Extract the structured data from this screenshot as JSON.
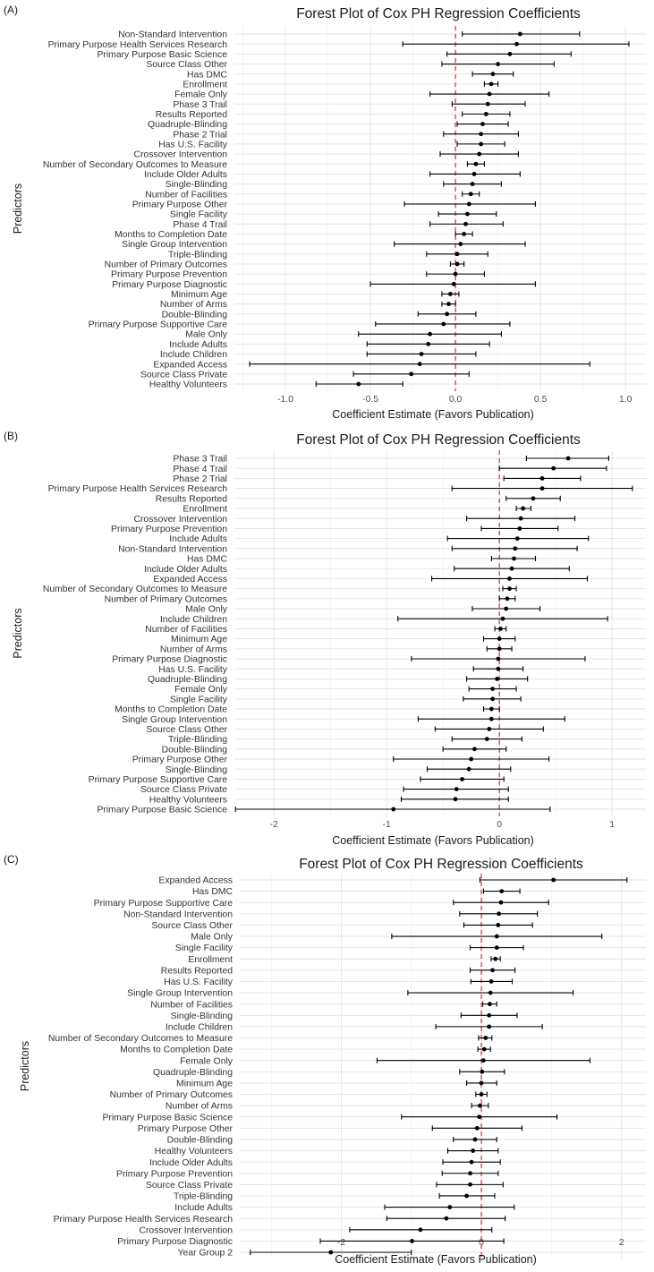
{
  "chart_data": [
    {
      "type": "forest",
      "panel_label": "(A)",
      "title": "Forest Plot of Cox PH Regression Coefficients",
      "xlabel": "Coefficient Estimate (Favors Publication)",
      "ylabel": "Predictors",
      "xlim": [
        -1.3,
        1.12
      ],
      "xticks": [
        -1.0,
        -0.5,
        0.0,
        0.5,
        1.0
      ],
      "xtick_labels": [
        "-1.0",
        "-0.5",
        "0.0",
        "0.5",
        "1.0"
      ],
      "reference_line": 0,
      "reference_color": "#e8242a",
      "rows": [
        {
          "label": "Non-Standard Intervention",
          "est": 0.38,
          "lo": 0.04,
          "hi": 0.73
        },
        {
          "label": "Primary Purpose Health Services Research",
          "est": 0.36,
          "lo": -0.31,
          "hi": 1.02
        },
        {
          "label": "Primary Purpose Basic Science",
          "est": 0.32,
          "lo": -0.05,
          "hi": 0.68
        },
        {
          "label": "Source Class Other",
          "est": 0.25,
          "lo": -0.08,
          "hi": 0.58
        },
        {
          "label": "Has DMC",
          "est": 0.22,
          "lo": 0.1,
          "hi": 0.34
        },
        {
          "label": "Enrollment",
          "est": 0.21,
          "lo": 0.17,
          "hi": 0.25
        },
        {
          "label": "Female Only",
          "est": 0.2,
          "lo": -0.15,
          "hi": 0.55
        },
        {
          "label": "Phase 3 Trail",
          "est": 0.19,
          "lo": -0.02,
          "hi": 0.41
        },
        {
          "label": "Results Reported",
          "est": 0.18,
          "lo": 0.04,
          "hi": 0.32
        },
        {
          "label": "Quadruple-Blinding",
          "est": 0.16,
          "lo": 0.01,
          "hi": 0.31
        },
        {
          "label": "Phase 2 Trial",
          "est": 0.15,
          "lo": -0.07,
          "hi": 0.37
        },
        {
          "label": "Has U.S. Facility",
          "est": 0.15,
          "lo": 0.01,
          "hi": 0.29
        },
        {
          "label": "Crossover Intervention",
          "est": 0.14,
          "lo": -0.09,
          "hi": 0.37
        },
        {
          "label": "Number of Secondary Outcomes to Measure",
          "est": 0.12,
          "lo": 0.07,
          "hi": 0.17
        },
        {
          "label": "Include Older Adults",
          "est": 0.11,
          "lo": -0.15,
          "hi": 0.38
        },
        {
          "label": "Single-Blinding",
          "est": 0.1,
          "lo": -0.07,
          "hi": 0.27
        },
        {
          "label": "Number of Facilities",
          "est": 0.09,
          "lo": 0.04,
          "hi": 0.14
        },
        {
          "label": "Primary Purpose Other",
          "est": 0.08,
          "lo": -0.3,
          "hi": 0.47
        },
        {
          "label": "Single Facility",
          "est": 0.07,
          "lo": -0.1,
          "hi": 0.24
        },
        {
          "label": "Phase 4 Trail",
          "est": 0.06,
          "lo": -0.15,
          "hi": 0.28
        },
        {
          "label": "Months to Completion Date",
          "est": 0.05,
          "lo": 0.0,
          "hi": 0.1
        },
        {
          "label": "Single Group Intervention",
          "est": 0.03,
          "lo": -0.36,
          "hi": 0.41
        },
        {
          "label": "Triple-Blinding",
          "est": 0.01,
          "lo": -0.17,
          "hi": 0.19
        },
        {
          "label": "Number of Primary Outcomes",
          "est": 0.01,
          "lo": -0.03,
          "hi": 0.05
        },
        {
          "label": "Primary Purpose Prevention",
          "est": 0.0,
          "lo": -0.17,
          "hi": 0.17
        },
        {
          "label": "Primary Purpose Diagnostic",
          "est": -0.01,
          "lo": -0.5,
          "hi": 0.47
        },
        {
          "label": "Minimum Age",
          "est": -0.03,
          "lo": -0.08,
          "hi": 0.02
        },
        {
          "label": "Number of Arms",
          "est": -0.04,
          "lo": -0.08,
          "hi": 0.0
        },
        {
          "label": "Double-Blinding",
          "est": -0.05,
          "lo": -0.22,
          "hi": 0.12
        },
        {
          "label": "Primary Purpose Supportive Care",
          "est": -0.07,
          "lo": -0.47,
          "hi": 0.32
        },
        {
          "label": "Male Only",
          "est": -0.15,
          "lo": -0.57,
          "hi": 0.27
        },
        {
          "label": "Include Adults",
          "est": -0.16,
          "lo": -0.52,
          "hi": 0.2
        },
        {
          "label": "Include Children",
          "est": -0.2,
          "lo": -0.52,
          "hi": 0.12
        },
        {
          "label": "Expanded Access",
          "est": -0.21,
          "lo": -1.21,
          "hi": 0.79
        },
        {
          "label": "Source Class Private",
          "est": -0.26,
          "lo": -0.6,
          "hi": 0.08
        },
        {
          "label": "Healthy Volunteers",
          "est": -0.57,
          "lo": -0.82,
          "hi": -0.31
        }
      ]
    },
    {
      "type": "forest",
      "panel_label": "(B)",
      "title": "Forest Plot of Cox PH Regression Coefficients",
      "xlabel": "Coefficient Estimate (Favors Publication)",
      "ylabel": "Predictors",
      "xlim": [
        -2.35,
        1.3
      ],
      "xticks": [
        -2,
        -1,
        0,
        1
      ],
      "xtick_labels": [
        "-2",
        "-1",
        "0",
        "1"
      ],
      "reference_line": 0,
      "reference_color": "#e8242a",
      "rows": [
        {
          "label": "Phase 3 Trail",
          "est": 0.61,
          "lo": 0.24,
          "hi": 0.97
        },
        {
          "label": "Phase 4 Trail",
          "est": 0.48,
          "lo": 0.0,
          "hi": 0.95
        },
        {
          "label": "Phase 2 Trial",
          "est": 0.38,
          "lo": 0.04,
          "hi": 0.72
        },
        {
          "label": "Primary Purpose Health Services Research",
          "est": 0.38,
          "lo": -0.42,
          "hi": 1.18
        },
        {
          "label": "Results Reported",
          "est": 0.3,
          "lo": 0.06,
          "hi": 0.54
        },
        {
          "label": "Enrollment",
          "est": 0.21,
          "lo": 0.15,
          "hi": 0.28
        },
        {
          "label": "Crossover Intervention",
          "est": 0.19,
          "lo": -0.29,
          "hi": 0.67
        },
        {
          "label": "Primary Purpose Prevention",
          "est": 0.18,
          "lo": -0.16,
          "hi": 0.52
        },
        {
          "label": "Include Adults",
          "est": 0.16,
          "lo": -0.46,
          "hi": 0.79
        },
        {
          "label": "Non-Standard Intervention",
          "est": 0.14,
          "lo": -0.42,
          "hi": 0.69
        },
        {
          "label": "Has DMC",
          "est": 0.13,
          "lo": -0.07,
          "hi": 0.32
        },
        {
          "label": "Include Older Adults",
          "est": 0.11,
          "lo": -0.4,
          "hi": 0.62
        },
        {
          "label": "Expanded Access",
          "est": 0.09,
          "lo": -0.6,
          "hi": 0.78
        },
        {
          "label": "Number of Secondary Outcomes to Measure",
          "est": 0.09,
          "lo": 0.03,
          "hi": 0.15
        },
        {
          "label": "Number of Primary Outcomes",
          "est": 0.07,
          "lo": 0.0,
          "hi": 0.14
        },
        {
          "label": "Male Only",
          "est": 0.06,
          "lo": -0.24,
          "hi": 0.36
        },
        {
          "label": "Include Children",
          "est": 0.03,
          "lo": -0.9,
          "hi": 0.96
        },
        {
          "label": "Number of Facilities",
          "est": 0.01,
          "lo": -0.04,
          "hi": 0.06
        },
        {
          "label": "Minimum Age",
          "est": 0.0,
          "lo": -0.14,
          "hi": 0.14
        },
        {
          "label": "Number of Arms",
          "est": 0.0,
          "lo": -0.11,
          "hi": 0.11
        },
        {
          "label": "Primary Purpose Diagnostic",
          "est": -0.01,
          "lo": -0.78,
          "hi": 0.76
        },
        {
          "label": "Has U.S. Facility",
          "est": -0.01,
          "lo": -0.23,
          "hi": 0.21
        },
        {
          "label": "Quadruple-Blinding",
          "est": -0.02,
          "lo": -0.29,
          "hi": 0.25
        },
        {
          "label": "Female Only",
          "est": -0.06,
          "lo": -0.27,
          "hi": 0.15
        },
        {
          "label": "Single Facility",
          "est": -0.06,
          "lo": -0.32,
          "hi": 0.19
        },
        {
          "label": "Months to Completion Date",
          "est": -0.07,
          "lo": -0.14,
          "hi": 0.0
        },
        {
          "label": "Single Group Intervention",
          "est": -0.07,
          "lo": -0.72,
          "hi": 0.58
        },
        {
          "label": "Source Class Other",
          "est": -0.09,
          "lo": -0.57,
          "hi": 0.39
        },
        {
          "label": "Triple-Blinding",
          "est": -0.11,
          "lo": -0.42,
          "hi": 0.2
        },
        {
          "label": "Double-Blinding",
          "est": -0.22,
          "lo": -0.5,
          "hi": 0.06
        },
        {
          "label": "Primary Purpose Other",
          "est": -0.25,
          "lo": -0.94,
          "hi": 0.44
        },
        {
          "label": "Single-Blinding",
          "est": -0.27,
          "lo": -0.64,
          "hi": 0.1
        },
        {
          "label": "Primary Purpose Supportive Care",
          "est": -0.33,
          "lo": -0.7,
          "hi": 0.04
        },
        {
          "label": "Source Class Private",
          "est": -0.38,
          "lo": -0.85,
          "hi": 0.08
        },
        {
          "label": "Healthy Volunteers",
          "est": -0.39,
          "lo": -0.87,
          "hi": 0.08
        },
        {
          "label": "Primary Purpose Basic Science",
          "est": -0.94,
          "lo": -2.34,
          "hi": 0.45
        }
      ]
    },
    {
      "type": "forest",
      "panel_label": "(C)",
      "title": "Forest Plot of Cox PH Regression Coefficients",
      "xlabel": "Coefficient Estimate (Favors Publication)",
      "ylabel": "Predictors",
      "xlim": [
        -3.45,
        2.35
      ],
      "xticks": [
        -2,
        0,
        2
      ],
      "xtick_labels": [
        "-2",
        "0",
        "2"
      ],
      "reference_line": 0,
      "reference_color": "#e8242a",
      "rows": [
        {
          "label": "Expanded Access",
          "est": 1.03,
          "lo": -0.02,
          "hi": 2.08
        },
        {
          "label": "Has DMC",
          "est": 0.29,
          "lo": 0.03,
          "hi": 0.55
        },
        {
          "label": "Primary Purpose Supportive Care",
          "est": 0.28,
          "lo": -0.4,
          "hi": 0.96
        },
        {
          "label": "Non-Standard Intervention",
          "est": 0.25,
          "lo": -0.31,
          "hi": 0.8
        },
        {
          "label": "Source Class Other",
          "est": 0.24,
          "lo": -0.25,
          "hi": 0.73
        },
        {
          "label": "Male Only",
          "est": 0.22,
          "lo": -1.28,
          "hi": 1.72
        },
        {
          "label": "Single Facility",
          "est": 0.22,
          "lo": -0.16,
          "hi": 0.6
        },
        {
          "label": "Enrollment",
          "est": 0.2,
          "lo": 0.14,
          "hi": 0.27
        },
        {
          "label": "Results Reported",
          "est": 0.16,
          "lo": -0.16,
          "hi": 0.48
        },
        {
          "label": "Has U.S. Facility",
          "est": 0.14,
          "lo": -0.15,
          "hi": 0.44
        },
        {
          "label": "Single Group Intervention",
          "est": 0.13,
          "lo": -1.05,
          "hi": 1.31
        },
        {
          "label": "Number of Facilities",
          "est": 0.12,
          "lo": 0.02,
          "hi": 0.22
        },
        {
          "label": "Single-Blinding",
          "est": 0.11,
          "lo": -0.29,
          "hi": 0.51
        },
        {
          "label": "Include Children",
          "est": 0.11,
          "lo": -0.65,
          "hi": 0.87
        },
        {
          "label": "Number of Secondary Outcomes to Measure",
          "est": 0.06,
          "lo": -0.04,
          "hi": 0.15
        },
        {
          "label": "Months to Completion Date",
          "est": 0.04,
          "lo": -0.05,
          "hi": 0.13
        },
        {
          "label": "Female Only",
          "est": 0.03,
          "lo": -1.49,
          "hi": 1.55
        },
        {
          "label": "Quadruple-Blinding",
          "est": 0.01,
          "lo": -0.31,
          "hi": 0.33
        },
        {
          "label": "Minimum Age",
          "est": 0.0,
          "lo": -0.21,
          "hi": 0.22
        },
        {
          "label": "Number of Primary Outcomes",
          "est": 0.0,
          "lo": -0.08,
          "hi": 0.08
        },
        {
          "label": "Number of Arms",
          "est": -0.02,
          "lo": -0.14,
          "hi": 0.1
        },
        {
          "label": "Primary Purpose Basic Science",
          "est": -0.03,
          "lo": -1.14,
          "hi": 1.08
        },
        {
          "label": "Primary Purpose Other",
          "est": -0.06,
          "lo": -0.7,
          "hi": 0.58
        },
        {
          "label": "Double-Blinding",
          "est": -0.09,
          "lo": -0.4,
          "hi": 0.22
        },
        {
          "label": "Healthy Volunteers",
          "est": -0.12,
          "lo": -0.48,
          "hi": 0.24
        },
        {
          "label": "Include Older Adults",
          "est": -0.14,
          "lo": -0.55,
          "hi": 0.27
        },
        {
          "label": "Primary Purpose Prevention",
          "est": -0.16,
          "lo": -0.56,
          "hi": 0.24
        },
        {
          "label": "Source Class Private",
          "est": -0.16,
          "lo": -0.64,
          "hi": 0.31
        },
        {
          "label": "Triple-Blinding",
          "est": -0.21,
          "lo": -0.6,
          "hi": 0.19
        },
        {
          "label": "Include Adults",
          "est": -0.45,
          "lo": -1.38,
          "hi": 0.47
        },
        {
          "label": "Primary Purpose Health Services Research",
          "est": -0.5,
          "lo": -1.35,
          "hi": 0.34
        },
        {
          "label": "Crossover Intervention",
          "est": -0.87,
          "lo": -1.88,
          "hi": 0.15
        },
        {
          "label": "Primary Purpose Diagnostic",
          "est": -0.99,
          "lo": -2.3,
          "hi": 0.32
        },
        {
          "label": "Year Group 2",
          "est": -2.15,
          "lo": -3.3,
          "hi": -1.0
        }
      ]
    }
  ]
}
